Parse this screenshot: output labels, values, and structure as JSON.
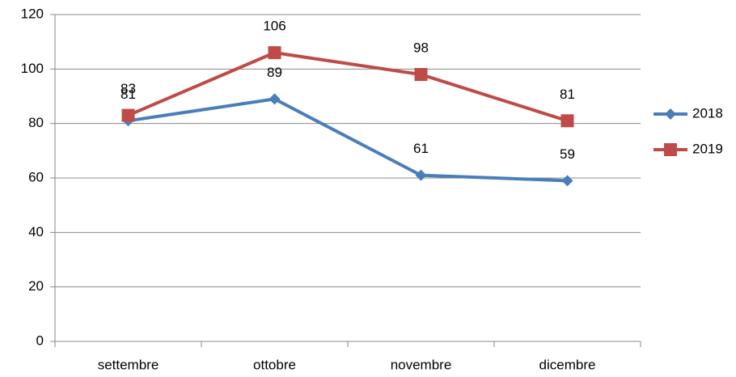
{
  "chart_data": {
    "type": "line",
    "categories": [
      "settembre",
      "ottobre",
      "novembre",
      "dicembre"
    ],
    "series": [
      {
        "name": "2018",
        "color": "#4a7ebb",
        "marker": "diamond",
        "values": [
          81,
          89,
          61,
          59
        ]
      },
      {
        "name": "2019",
        "color": "#be4b48",
        "marker": "square",
        "values": [
          83,
          106,
          98,
          81
        ]
      }
    ],
    "ylim": [
      0,
      120
    ],
    "yticks": [
      0,
      20,
      40,
      60,
      80,
      100,
      120
    ],
    "grid": true,
    "legend": "right",
    "data_labels": true
  }
}
